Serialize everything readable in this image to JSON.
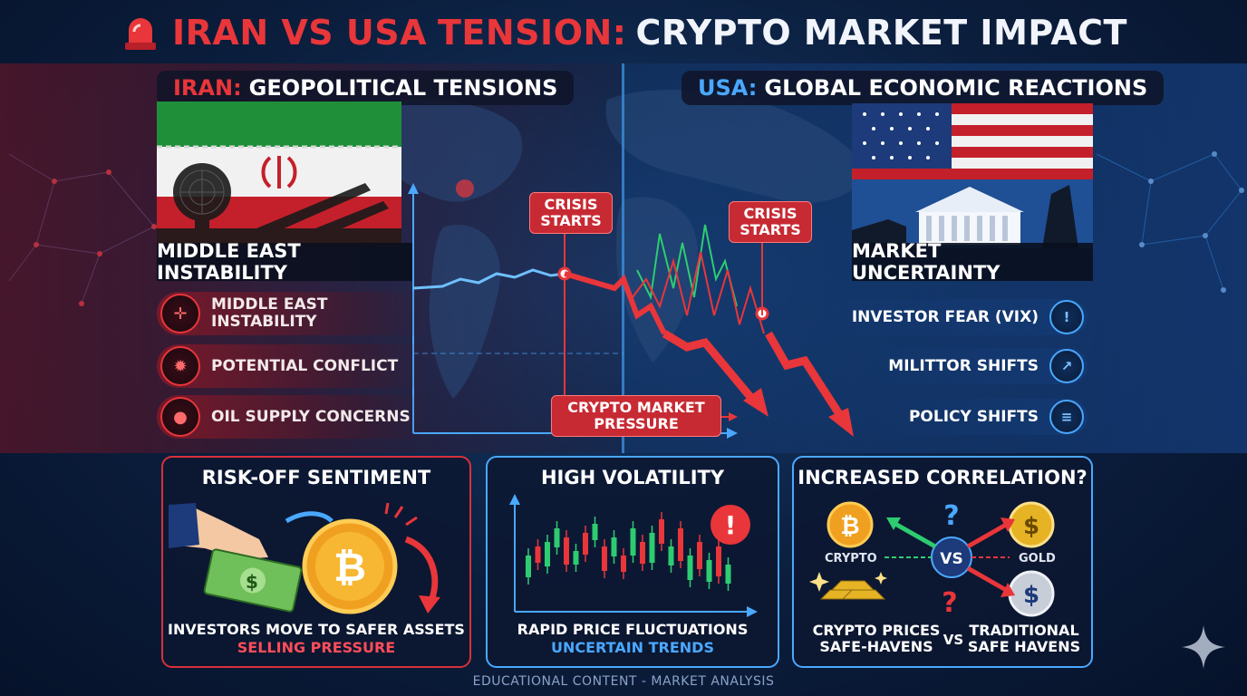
{
  "header": {
    "title_part1": "IRAN VS USA",
    "title_part2": "TENSION:",
    "title_part3": "CRYPTO MARKET IMPACT",
    "icon": "siren-icon"
  },
  "left_panel": {
    "heading_red": "IRAN:",
    "heading_white": "GEOPOLITICAL TENSIONS",
    "banner": "MIDDLE EAST INSTABILITY",
    "factors": [
      {
        "label_line1": "MIDDLE EAST",
        "label_line2": "INSTABILITY",
        "icon": "conflict-arrows-icon"
      },
      {
        "label_line1": "POTENTIAL CONFLICT",
        "label_line2": "",
        "icon": "explosion-icon"
      },
      {
        "label_line1": "OIL SUPPLY CONCERNS",
        "label_line2": "",
        "icon": "oil-drop-icon"
      }
    ]
  },
  "right_panel": {
    "heading_blue": "USA:",
    "heading_white": "GLOBAL ECONOMIC REACTIONS",
    "banner": "MARKET UNCERTAINTY",
    "factors": [
      {
        "label": "INVESTOR FEAR (VIX)",
        "icon": "shield-alert-icon"
      },
      {
        "label": "MILITTOR SHIFTS",
        "icon": "chart-up-icon"
      },
      {
        "label": "POLICY SHIFTS",
        "icon": "document-icon"
      }
    ]
  },
  "chart_labels": {
    "crisis_1_line1": "CRISIS",
    "crisis_1_line2": "STARTS",
    "crisis_2_line1": "CRISIS",
    "crisis_2_line2": "STARTS",
    "pressure_line1": "CRYPTO MARKET",
    "pressure_line2": "PRESSURE"
  },
  "cards": {
    "risk_off": {
      "title": "RISK-OFF SENTIMENT",
      "foot_line1": "INVESTORS MOVE TO SAFER ASSETS",
      "foot_line2": "SELLING PRESSURE",
      "coin_symbol": "₿",
      "cash_symbol": "$"
    },
    "volatility": {
      "title": "HIGH VOLATILITY",
      "foot_line1": "RAPID PRICE FLUCTUATIONS",
      "foot_line2": "UNCERTAIN TRENDS",
      "alert_symbol": "!"
    },
    "correlation": {
      "title": "INCREASED CORRELATION?",
      "crypto_label": "CRYPTO",
      "gold_label": "GOLD",
      "vs_label": "VS",
      "question": "?",
      "bitcoin_symbol": "₿",
      "gold_symbol": "$",
      "dollar_symbol": "$",
      "compare_left_line1": "CRYPTO PRICES",
      "compare_left_line2": "SAFE-HAVENS",
      "compare_vs": "VS",
      "compare_right_line1": "TRADITIONAL",
      "compare_right_line2": "SAFE HAVENS"
    }
  },
  "footer": "EDUCATIONAL CONTENT - MARKET ANALYSIS",
  "colors": {
    "accent_red": "#e8363a",
    "accent_blue": "#4aa8ff",
    "background": "#0b1e3d"
  }
}
